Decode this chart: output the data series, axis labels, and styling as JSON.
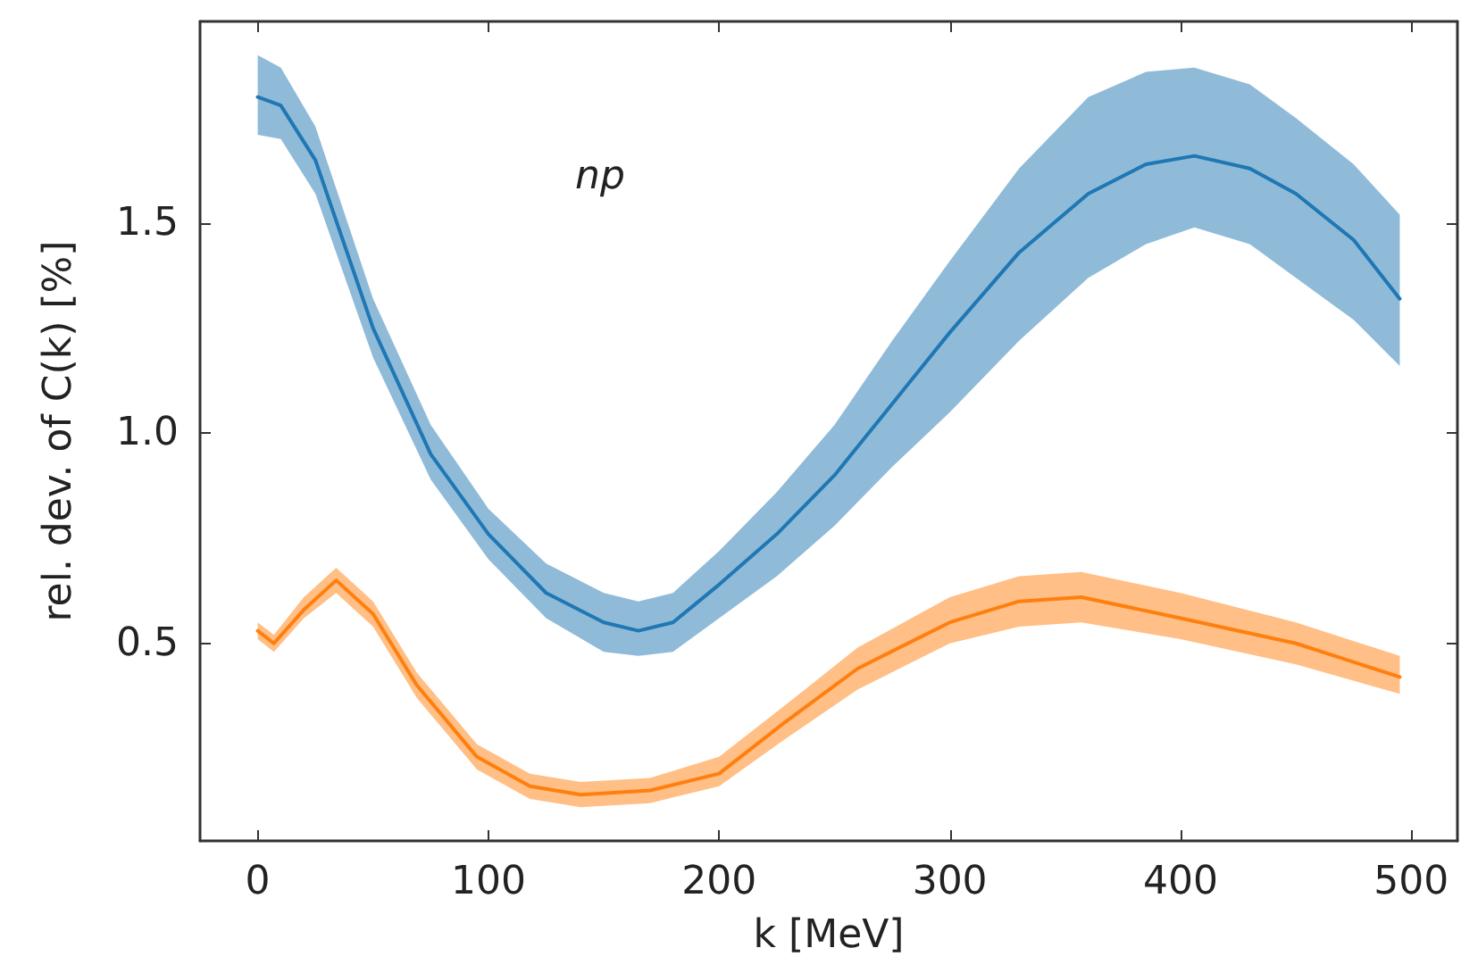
{
  "chart_data": {
    "type": "line",
    "xlabel": "k [MeV]",
    "ylabel": "rel. dev. of C(k) [%]",
    "annotations": [
      "np"
    ],
    "xlim": [
      -25,
      520
    ],
    "xticks": [
      0,
      100,
      200,
      300,
      400,
      500
    ],
    "ylim": [
      0.03,
      1.98
    ],
    "yticks": [
      {
        "value": 0.5,
        "label": "0.5"
      },
      {
        "value": 1.0,
        "label": "1.0"
      },
      {
        "value": 1.5,
        "label": "1.5"
      }
    ],
    "grid": false,
    "marker": "none",
    "line_style": "solid",
    "series": [
      {
        "color": "#1f77b4",
        "x": [
          0,
          10,
          25,
          50,
          75,
          100,
          125,
          150,
          165,
          180,
          200,
          225,
          250,
          275,
          300,
          330,
          360,
          385,
          406,
          430,
          450,
          475,
          495
        ],
        "values": [
          1.8,
          1.78,
          1.65,
          1.25,
          0.95,
          0.76,
          0.62,
          0.55,
          0.53,
          0.55,
          0.64,
          0.76,
          0.9,
          1.07,
          1.24,
          1.43,
          1.57,
          1.64,
          1.66,
          1.63,
          1.57,
          1.46,
          1.32
        ],
        "lower": [
          1.71,
          1.7,
          1.57,
          1.18,
          0.89,
          0.7,
          0.56,
          0.48,
          0.47,
          0.48,
          0.56,
          0.66,
          0.78,
          0.92,
          1.05,
          1.22,
          1.37,
          1.45,
          1.49,
          1.45,
          1.37,
          1.27,
          1.16
        ],
        "upper": [
          1.9,
          1.87,
          1.73,
          1.32,
          1.02,
          0.82,
          0.69,
          0.62,
          0.6,
          0.62,
          0.72,
          0.86,
          1.02,
          1.22,
          1.41,
          1.63,
          1.8,
          1.86,
          1.87,
          1.83,
          1.75,
          1.64,
          1.52
        ]
      },
      {
        "color": "#ff7f0e",
        "x": [
          0,
          7,
          20,
          34,
          50,
          69,
          95,
          118,
          140,
          170,
          200,
          228,
          260,
          300,
          330,
          357,
          400,
          450,
          495
        ],
        "values": [
          0.53,
          0.5,
          0.58,
          0.65,
          0.57,
          0.4,
          0.23,
          0.16,
          0.14,
          0.15,
          0.19,
          0.31,
          0.44,
          0.55,
          0.6,
          0.61,
          0.56,
          0.5,
          0.42
        ],
        "lower": [
          0.51,
          0.48,
          0.56,
          0.62,
          0.54,
          0.37,
          0.2,
          0.13,
          0.11,
          0.12,
          0.16,
          0.27,
          0.39,
          0.5,
          0.54,
          0.55,
          0.51,
          0.45,
          0.38
        ],
        "upper": [
          0.55,
          0.52,
          0.61,
          0.68,
          0.6,
          0.43,
          0.26,
          0.19,
          0.17,
          0.18,
          0.23,
          0.35,
          0.49,
          0.61,
          0.66,
          0.67,
          0.62,
          0.55,
          0.47
        ]
      }
    ]
  }
}
